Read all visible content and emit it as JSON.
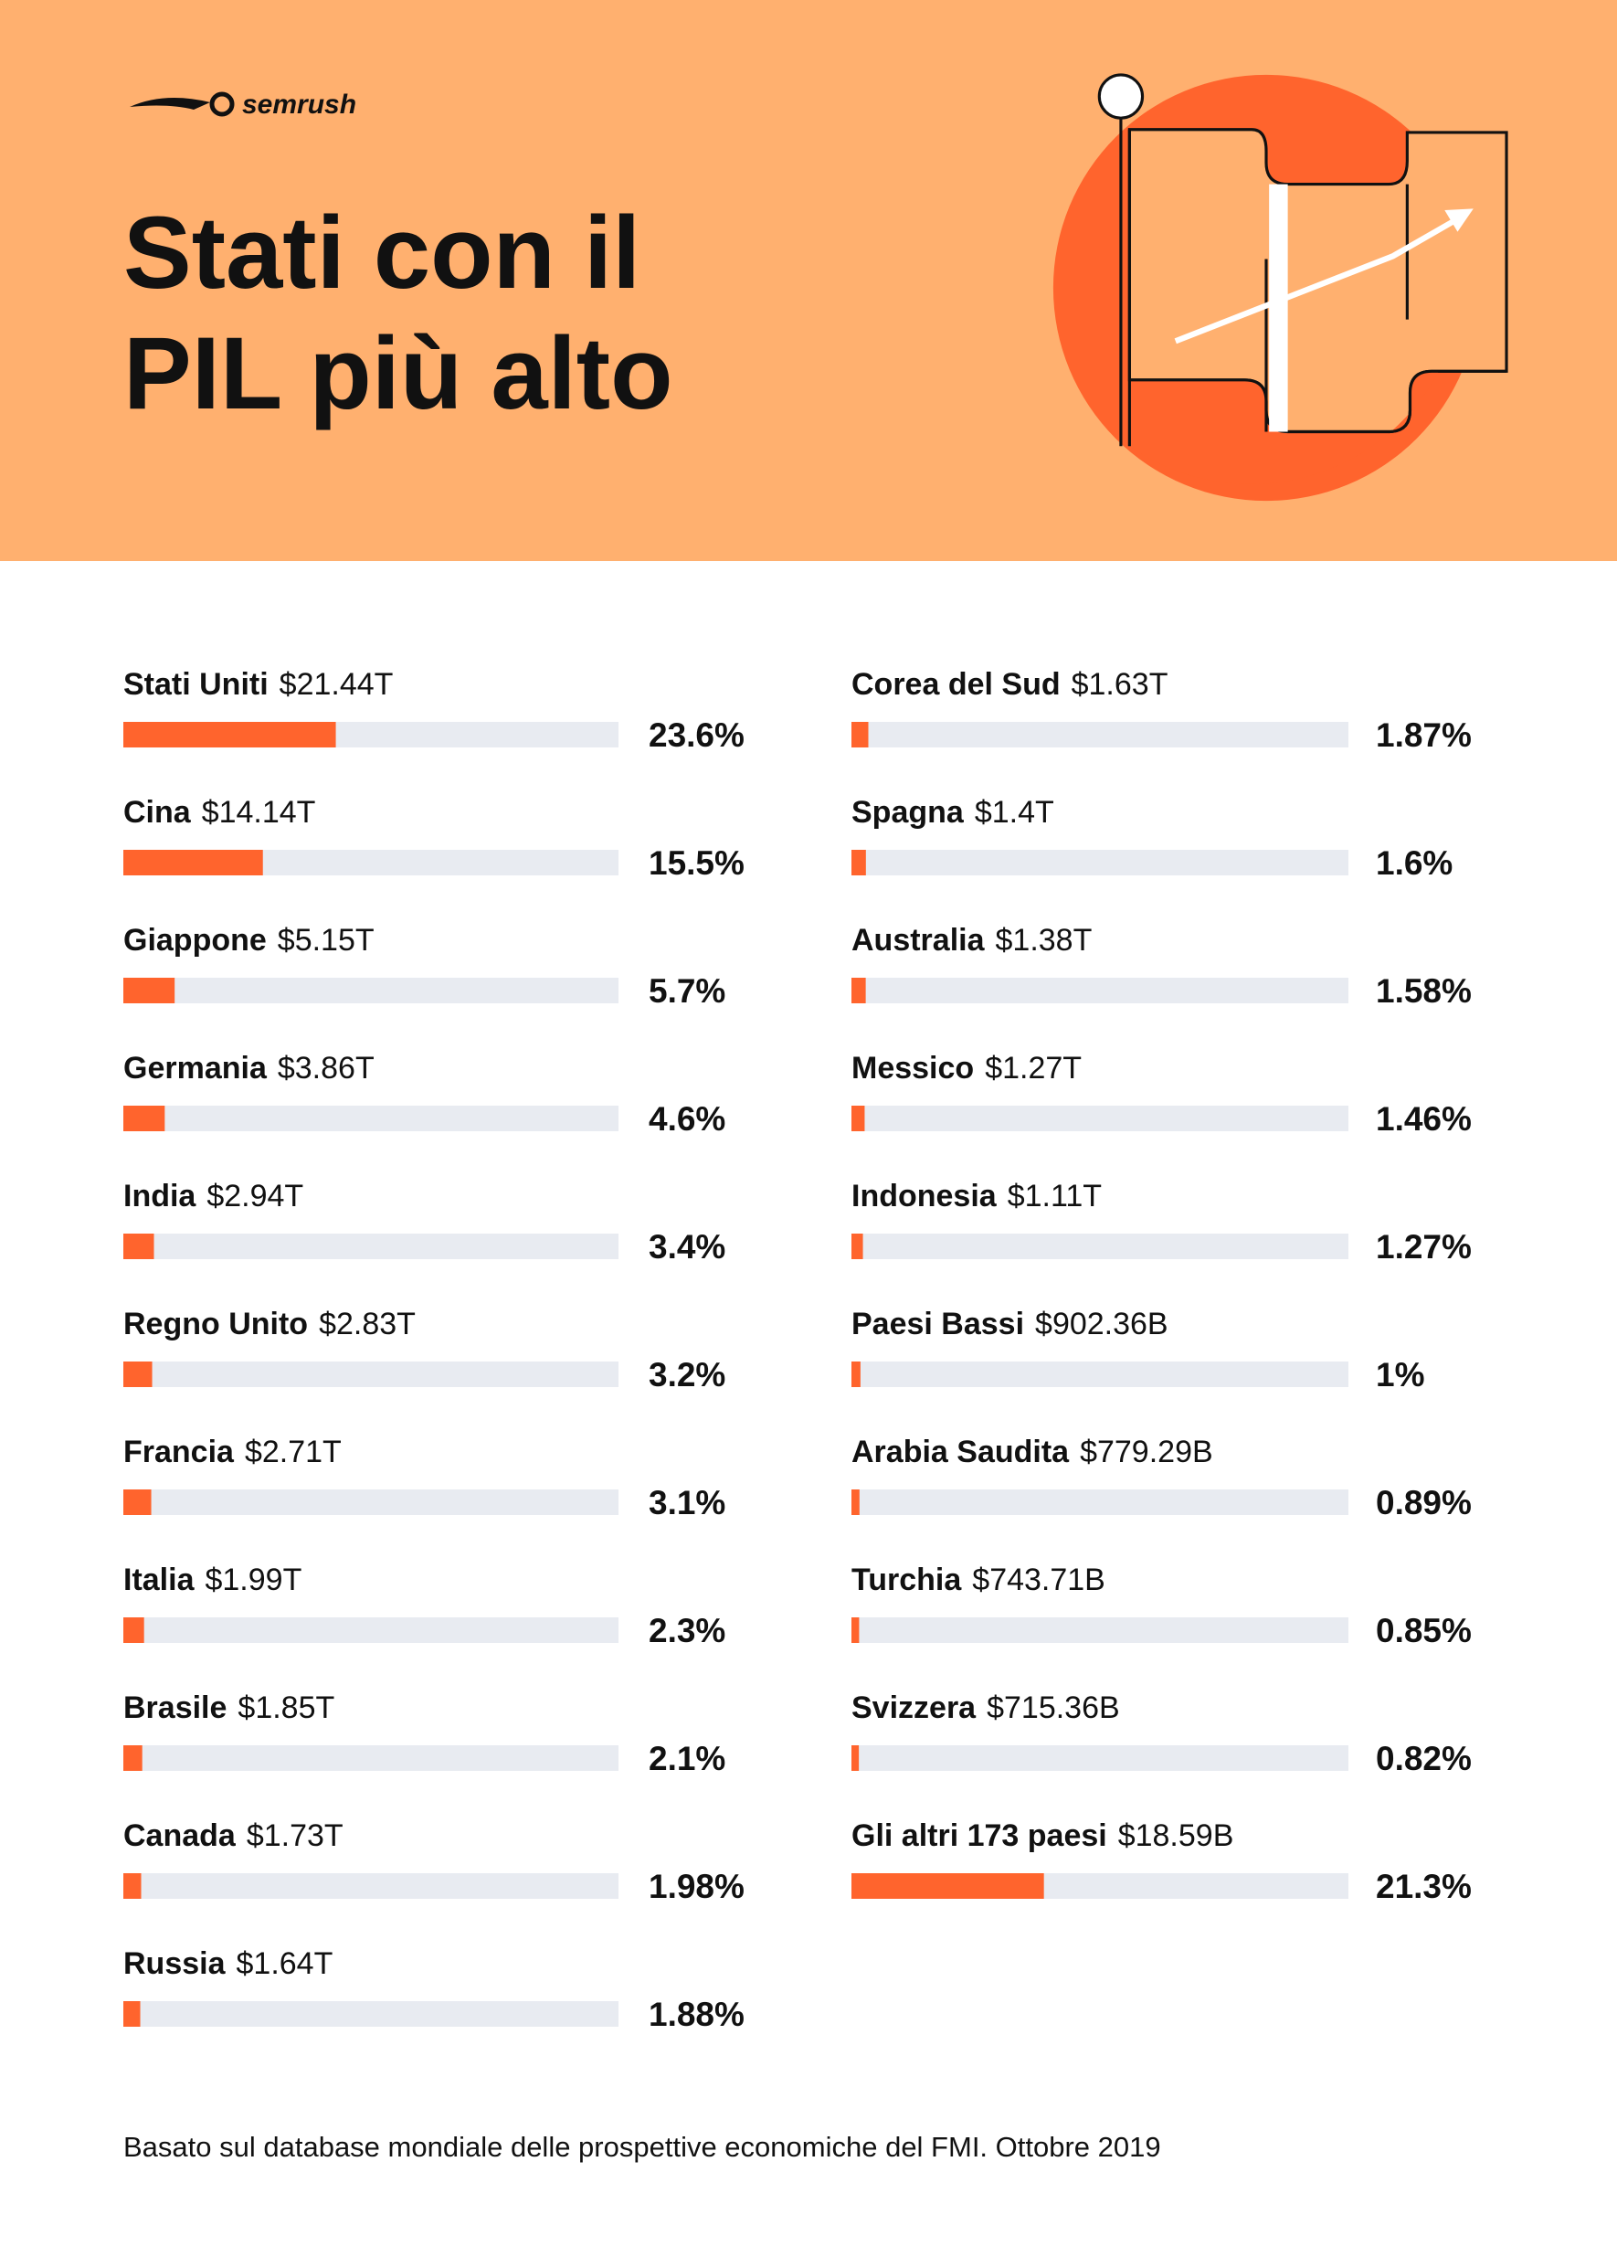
{
  "chart_data": {
    "type": "bar",
    "logo": "semrush",
    "title_lines": [
      "Stati con il",
      "PIL più alto"
    ],
    "categories": [
      "Stati Uniti",
      "Cina",
      "Giappone",
      "Germania",
      "India",
      "Regno Unito",
      "Francia",
      "Italia",
      "Brasile",
      "Canada",
      "Russia",
      "Corea del Sud",
      "Spagna",
      "Australia",
      "Messico",
      "Indonesia",
      "Paesi Bassi",
      "Arabia Saudita",
      "Turchia",
      "Svizzera",
      "Gli altri 173 paesi"
    ],
    "gdp": [
      "$21.44T",
      "$14.14T",
      "$5.15T",
      "$3.86T",
      "$2.94T",
      "$2.83T",
      "$2.71T",
      "$1.99T",
      "$1.85T",
      "$1.73T",
      "$1.64T",
      "$1.63T",
      "$1.4T",
      "$1.38T",
      "$1.27T",
      "$1.11T",
      "$902.36B",
      "$779.29B",
      "$743.71B",
      "$715.36B",
      "$18.59B"
    ],
    "values": [
      23.6,
      15.5,
      5.7,
      4.6,
      3.4,
      3.2,
      3.1,
      2.3,
      2.1,
      1.98,
      1.88,
      1.87,
      1.6,
      1.58,
      1.46,
      1.27,
      1,
      0.89,
      0.85,
      0.82,
      21.3
    ],
    "value_labels": [
      "23.6%",
      "15.5%",
      "5.7%",
      "4.6%",
      "3.4%",
      "3.2%",
      "3.1%",
      "2.3%",
      "2.1%",
      "1.98%",
      "1.88%",
      "1.87%",
      "1.6%",
      "1.58%",
      "1.46%",
      "1.27%",
      "1%",
      "0.89%",
      "0.85%",
      "0.82%",
      "21.3%"
    ],
    "xlim": [
      0,
      55
    ],
    "color": "#ff642d",
    "track_color": "#e8ebf1",
    "source": "Basato sul database mondiale delle prospettive economiche del FMI. Ottobre 2019"
  }
}
